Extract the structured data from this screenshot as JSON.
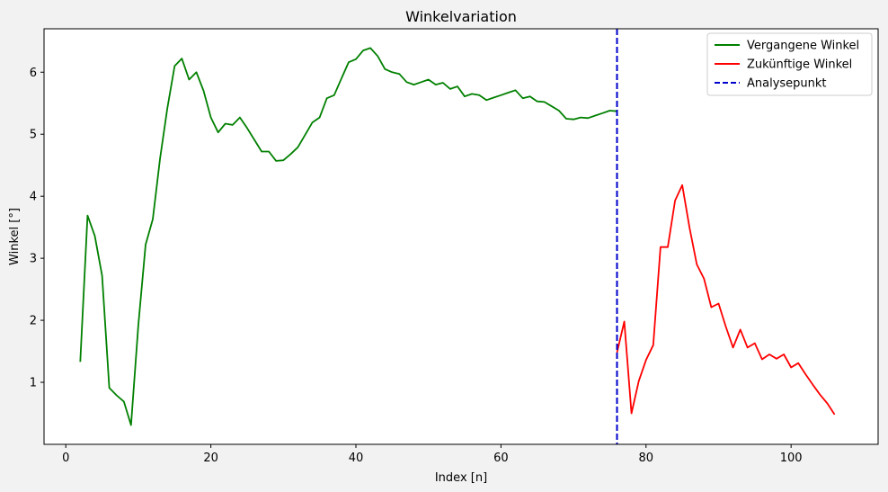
{
  "chart_data": {
    "type": "line",
    "title": "Winkelvariation",
    "xlabel": "Index [n]",
    "ylabel": "Winkel [°]",
    "xlim": [
      -3,
      112
    ],
    "ylim": [
      0.0,
      6.7
    ],
    "xticks": [
      0,
      20,
      40,
      60,
      80,
      100
    ],
    "yticks": [
      1,
      2,
      3,
      4,
      5,
      6
    ],
    "grid": false,
    "legend_position": "top-right",
    "series": [
      {
        "name": "Vergangene Winkel",
        "color": "#008000",
        "style": "solid",
        "x": [
          2,
          3,
          4,
          5,
          6,
          7,
          8,
          9,
          10,
          11,
          12,
          13,
          14,
          15,
          16,
          17,
          18,
          19,
          20,
          21,
          22,
          23,
          24,
          25,
          26,
          27,
          28,
          29,
          30,
          31,
          32,
          33,
          34,
          35,
          36,
          37,
          38,
          39,
          40,
          41,
          42,
          43,
          44,
          45,
          46,
          47,
          48,
          49,
          50,
          51,
          52,
          53,
          54,
          55,
          56,
          57,
          58,
          59,
          60,
          61,
          62,
          63,
          64,
          65,
          66,
          67,
          68,
          69,
          70,
          71,
          72,
          73,
          74,
          75,
          76
        ],
        "y": [
          1.33,
          3.69,
          3.36,
          2.72,
          0.91,
          0.79,
          0.69,
          0.31,
          1.92,
          3.22,
          3.63,
          4.61,
          5.42,
          6.1,
          6.22,
          5.88,
          6.0,
          5.7,
          5.27,
          5.03,
          5.17,
          5.15,
          5.27,
          5.1,
          4.91,
          4.72,
          4.72,
          4.57,
          4.58,
          4.68,
          4.79,
          4.99,
          5.19,
          5.27,
          5.58,
          5.63,
          5.9,
          6.16,
          6.21,
          6.35,
          6.39,
          6.26,
          6.05,
          6.0,
          5.97,
          5.84,
          5.8,
          5.84,
          5.88,
          5.8,
          5.83,
          5.73,
          5.77,
          5.61,
          5.65,
          5.63,
          5.55,
          5.59,
          5.63,
          5.67,
          5.71,
          5.58,
          5.61,
          5.53,
          5.52,
          5.45,
          5.38,
          5.25,
          5.24,
          5.27,
          5.26,
          5.3,
          5.34,
          5.38,
          5.37
        ]
      },
      {
        "name": "Zukünftige Winkel",
        "color": "#ff0000",
        "style": "solid",
        "x": [
          76,
          77,
          78,
          79,
          80,
          81,
          82,
          83,
          84,
          85,
          86,
          87,
          88,
          89,
          90,
          91,
          92,
          93,
          94,
          95,
          96,
          97,
          98,
          99,
          100,
          101,
          102,
          103,
          104,
          105,
          106
        ],
        "y": [
          1.48,
          1.98,
          0.5,
          1.02,
          1.36,
          1.6,
          3.18,
          3.18,
          3.93,
          4.18,
          3.49,
          2.9,
          2.67,
          2.21,
          2.27,
          1.9,
          1.56,
          1.85,
          1.56,
          1.63,
          1.37,
          1.45,
          1.38,
          1.45,
          1.24,
          1.31,
          1.13,
          0.96,
          0.8,
          0.66,
          0.48
        ]
      },
      {
        "name": "Analysepunkt",
        "color": "#0000cc",
        "style": "dashed",
        "vline_x": 76
      }
    ]
  }
}
